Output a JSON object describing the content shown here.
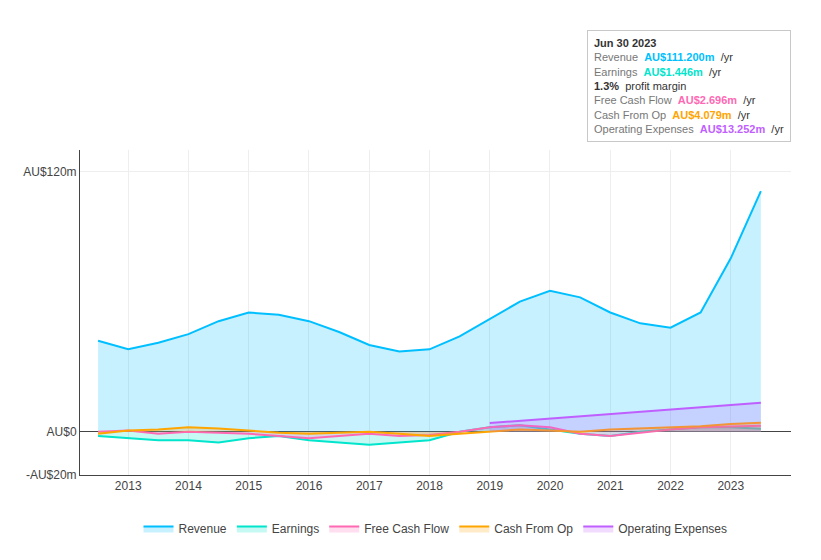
{
  "chart_data": {
    "type": "area",
    "x": [
      2012.5,
      2013,
      2013.5,
      2014,
      2014.5,
      2015,
      2015.5,
      2016,
      2016.5,
      2017,
      2017.5,
      2018,
      2018.5,
      2019,
      2019.5,
      2020,
      2020.5,
      2021,
      2021.5,
      2022,
      2022.5,
      2023,
      2023.5
    ],
    "series": [
      {
        "name": "Revenue",
        "color": "#00bfff",
        "values": [
          42,
          38,
          41,
          45,
          51,
          55,
          54,
          51,
          46,
          40,
          37,
          38,
          44,
          52,
          60,
          65,
          62,
          55,
          50,
          48,
          55,
          80,
          111
        ]
      },
      {
        "name": "Earnings",
        "color": "#00e5cc",
        "values": [
          -2,
          -3,
          -4,
          -4,
          -5,
          -3,
          -2,
          -4,
          -5,
          -6,
          -5,
          -4,
          0,
          2,
          3,
          1,
          -1,
          -2,
          0,
          1,
          2,
          2,
          1.4
        ]
      },
      {
        "name": "Free Cash Flow",
        "color": "#ff69b4",
        "values": [
          0,
          0.5,
          -1,
          0,
          -0.5,
          -1,
          -2,
          -3,
          -2,
          -1,
          -2,
          -1.5,
          0,
          2,
          3,
          2,
          -1,
          -2,
          -0.5,
          1,
          2,
          2.5,
          2.7
        ]
      },
      {
        "name": "Cash From Op",
        "color": "#ffa500",
        "values": [
          -1,
          0.5,
          1,
          2,
          1.5,
          0.5,
          -0.5,
          -1,
          -0.5,
          0,
          -1,
          -2,
          -1,
          0,
          1,
          0.5,
          0,
          1,
          1.5,
          2,
          2.5,
          3.5,
          4.1
        ]
      },
      {
        "name": "Operating Expenses",
        "color": "#bf5fff",
        "values": [
          null,
          null,
          null,
          null,
          null,
          null,
          null,
          null,
          null,
          null,
          null,
          null,
          null,
          4,
          5,
          6,
          7,
          8,
          9,
          10,
          11,
          12,
          13.3
        ]
      }
    ],
    "xlim": [
      2012.2,
      2024
    ],
    "xticks": [
      2013,
      2014,
      2015,
      2016,
      2017,
      2018,
      2019,
      2020,
      2021,
      2022,
      2023
    ],
    "ylim": [
      -20,
      130
    ],
    "yticks": [
      {
        "value": -20,
        "label": "-AU$20m"
      },
      {
        "value": 0,
        "label": "AU$0"
      },
      {
        "value": 120,
        "label": "AU$120m"
      }
    ],
    "grid": true,
    "legend": "bottom",
    "annotations": [
      {
        "text": "Jun 30 2023"
      },
      {
        "label": "Revenue",
        "value": "AU$111.200m",
        "unit": "/yr",
        "color": "#00bfff"
      },
      {
        "label": "Earnings",
        "value": "AU$1.446m",
        "unit": "/yr",
        "color": "#00e5cc"
      },
      {
        "value": "1.3%",
        "unit": "profit margin"
      },
      {
        "label": "Free Cash Flow",
        "value": "AU$2.696m",
        "unit": "/yr",
        "color": "#ff69b4"
      },
      {
        "label": "Cash From Op",
        "value": "AU$4.079m",
        "unit": "/yr",
        "color": "#ffa500"
      },
      {
        "label": "Operating Expenses",
        "value": "AU$13.252m",
        "unit": "/yr",
        "color": "#bf5fff"
      }
    ]
  }
}
